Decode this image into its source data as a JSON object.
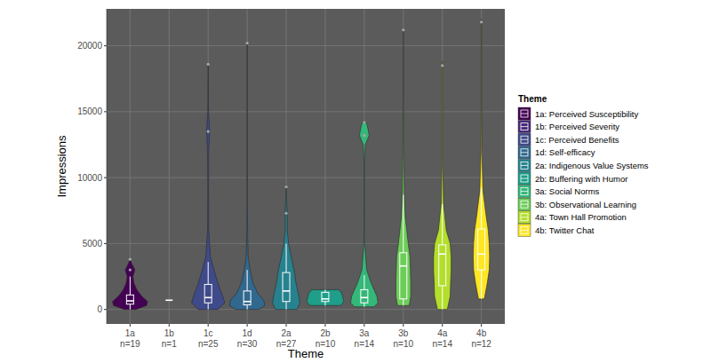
{
  "chart_data": {
    "type": "violin",
    "x_label": "Theme",
    "y_label": "Impressions",
    "legend_title": "Theme",
    "legend": "right",
    "grid": true,
    "ylim": [
      -1100,
      22800
    ],
    "yticks": [
      0,
      5000,
      10000,
      15000,
      20000
    ],
    "categories": [
      "1a\nn=19",
      "1b\nn=1",
      "1c\nn=25",
      "1d\nn=30",
      "2a\nn=27",
      "2b\nn=10",
      "3a\nn=14",
      "3b\nn=10",
      "4a\nn=14",
      "4b\nn=12"
    ],
    "series": [
      {
        "name": "1a: Perceived Susceptibility",
        "color": "#440154",
        "box": {
          "min": 0,
          "q1": 400,
          "median": 650,
          "q3": 1100,
          "max": 2500
        },
        "outliers": [
          3000,
          3800
        ],
        "violin": {
          "y": [
            0,
            300,
            600,
            1000,
            1500,
            2000,
            2500,
            3000,
            3500,
            3800
          ],
          "width": [
            0.3,
            0.85,
            0.9,
            0.6,
            0.35,
            0.2,
            0.15,
            0.25,
            0.08,
            0.02
          ]
        }
      },
      {
        "name": "1b: Perceived Severity",
        "color": "#482878",
        "box": {
          "min": 700,
          "q1": 700,
          "median": 700,
          "q3": 700,
          "max": 700
        },
        "outliers": []
      },
      {
        "name": "1c: Perceived Benefits",
        "color": "#3E4A89",
        "box": {
          "min": 0,
          "q1": 500,
          "median": 900,
          "q3": 1900,
          "max": 3600
        },
        "outliers": [
          13500,
          18600
        ],
        "violin": {
          "y": [
            0,
            500,
            1000,
            2000,
            3000,
            4000,
            6000,
            9000,
            12000,
            13500,
            15000,
            18600
          ],
          "width": [
            0.5,
            0.85,
            0.75,
            0.5,
            0.3,
            0.12,
            0.03,
            0.02,
            0.03,
            0.08,
            0.02,
            0.01
          ]
        }
      },
      {
        "name": "1d: Self-efficacy",
        "color": "#31688E",
        "box": {
          "min": 0,
          "q1": 350,
          "median": 600,
          "q3": 1400,
          "max": 3000
        },
        "outliers": [
          20200
        ],
        "violin": {
          "y": [
            0,
            300,
            700,
            1200,
            2000,
            3000,
            4000,
            6000,
            10000,
            15000,
            20200
          ],
          "width": [
            0.6,
            0.9,
            0.85,
            0.55,
            0.3,
            0.15,
            0.05,
            0.02,
            0.01,
            0.01,
            0.01
          ]
        }
      },
      {
        "name": "2a: Indigenous Value Systems",
        "color": "#26828E",
        "box": {
          "min": 0,
          "q1": 600,
          "median": 1400,
          "q3": 2800,
          "max": 5000
        },
        "outliers": [
          7300,
          9300
        ],
        "violin": {
          "y": [
            0,
            500,
            1000,
            2000,
            3000,
            4000,
            5000,
            6000,
            7300,
            8500,
            9400
          ],
          "width": [
            0.55,
            0.7,
            0.65,
            0.5,
            0.4,
            0.25,
            0.12,
            0.05,
            0.05,
            0.02,
            0.01
          ]
        }
      },
      {
        "name": "2b: Buffering with Humor",
        "color": "#1F9E89",
        "box": {
          "min": 300,
          "q1": 600,
          "median": 800,
          "q3": 1300,
          "max": 1500
        },
        "outliers": [],
        "violin": {
          "y": [
            300,
            600,
            900,
            1200,
            1500
          ],
          "width": [
            0.8,
            0.95,
            0.9,
            0.85,
            0.7
          ]
        }
      },
      {
        "name": "3a: Social Norms",
        "color": "#35B779",
        "box": {
          "min": 200,
          "q1": 500,
          "median": 900,
          "q3": 1500,
          "max": 2600
        },
        "outliers": [
          13200,
          14200
        ],
        "violin": {
          "y": [
            200,
            500,
            1000,
            1500,
            2000,
            3000,
            5000,
            8000,
            11000,
            12500,
            13200,
            14000,
            14300
          ],
          "width": [
            0.5,
            0.7,
            0.65,
            0.5,
            0.35,
            0.12,
            0.02,
            0.01,
            0.01,
            0.05,
            0.25,
            0.15,
            0.02
          ]
        }
      },
      {
        "name": "3b: Observational Learning",
        "color": "#6DCD59",
        "box": {
          "min": 300,
          "q1": 800,
          "median": 3300,
          "q3": 4300,
          "max": 8700
        },
        "outliers": [
          21200
        ],
        "violin": {
          "y": [
            300,
            1000,
            2000,
            3000,
            4000,
            5000,
            7000,
            8700,
            12000,
            16000,
            21200
          ],
          "width": [
            0.3,
            0.38,
            0.38,
            0.36,
            0.34,
            0.25,
            0.1,
            0.05,
            0.02,
            0.01,
            0.01
          ]
        }
      },
      {
        "name": "4a: Town Hall Promotion",
        "color": "#B4DE2C",
        "box": {
          "min": 0,
          "q1": 1800,
          "median": 4200,
          "q3": 4900,
          "max": 8000
        },
        "outliers": [
          18500
        ],
        "violin": {
          "y": [
            0,
            1000,
            2000,
            3000,
            4000,
            5000,
            6000,
            8000,
            11000,
            15000,
            18800
          ],
          "width": [
            0.25,
            0.4,
            0.42,
            0.45,
            0.45,
            0.4,
            0.2,
            0.06,
            0.02,
            0.02,
            0.02
          ]
        }
      },
      {
        "name": "4b: Twitter Chat",
        "color": "#FDE725",
        "box": {
          "min": 800,
          "q1": 3000,
          "median": 4200,
          "q3": 6100,
          "max": 9200
        },
        "outliers": [
          21800
        ],
        "violin": {
          "y": [
            800,
            2000,
            3000,
            4000,
            5000,
            6000,
            7000,
            9000,
            12000,
            16000,
            22000
          ],
          "width": [
            0.15,
            0.3,
            0.4,
            0.42,
            0.4,
            0.35,
            0.25,
            0.08,
            0.02,
            0.01,
            0.01
          ]
        }
      }
    ]
  }
}
